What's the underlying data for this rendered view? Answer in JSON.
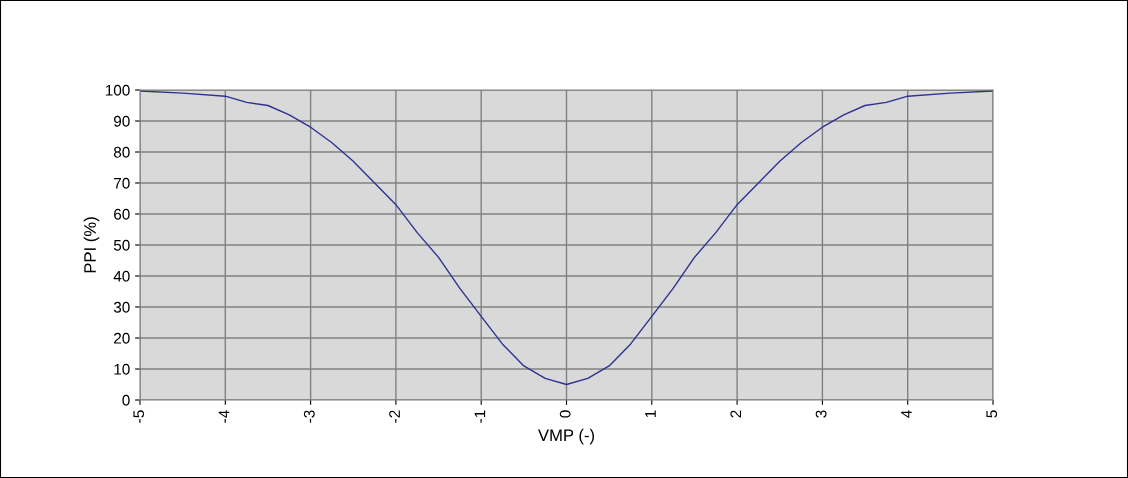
{
  "chart_data": {
    "type": "line",
    "xlabel": "VMP (-)",
    "ylabel": "PPI (%)",
    "series": [
      {
        "color": "#2e3192",
        "x": [
          -5,
          -4.5,
          -4,
          -3.75,
          -3.5,
          -3.25,
          -3,
          -2.75,
          -2.5,
          -2.25,
          -2,
          -1.75,
          -1.5,
          -1.25,
          -1,
          -0.75,
          -0.5,
          -0.25,
          0,
          0.25,
          0.5,
          0.75,
          1,
          1.25,
          1.5,
          1.75,
          2,
          2.25,
          2.5,
          2.75,
          3,
          3.25,
          3.5,
          3.75,
          4,
          4.5,
          5
        ],
        "values": [
          99.7,
          99,
          98,
          96,
          95,
          92,
          88,
          83,
          77,
          70,
          63,
          54,
          46,
          36,
          27,
          18,
          11,
          7,
          5,
          7,
          11,
          18,
          27,
          36,
          46,
          54,
          63,
          70,
          77,
          83,
          88,
          92,
          95,
          96,
          98,
          99,
          99.7
        ]
      }
    ],
    "xlim": [
      -5,
      5
    ],
    "xticks": [
      -5,
      -4,
      -3,
      -2,
      -1,
      0,
      1,
      2,
      3,
      4,
      5
    ],
    "ylim": [
      0,
      100
    ],
    "yticks": [
      0,
      10,
      20,
      30,
      40,
      50,
      60,
      70,
      80,
      90,
      100
    ],
    "grid": true,
    "marker": "none",
    "line_style": "solid"
  }
}
